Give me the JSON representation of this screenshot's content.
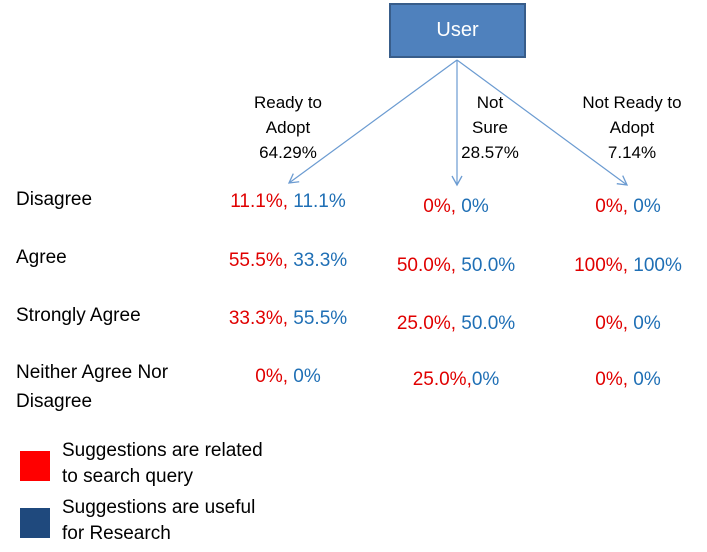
{
  "root": {
    "label": "User"
  },
  "groups": [
    {
      "lines": [
        "Ready to",
        "Adopt",
        "64.29%"
      ]
    },
    {
      "lines": [
        "Not",
        "Sure",
        "28.57%"
      ]
    },
    {
      "lines": [
        "Not Ready to",
        "Adopt",
        "7.14%"
      ]
    }
  ],
  "rows": [
    {
      "label_lines": [
        "Disagree"
      ],
      "cells": [
        {
          "a": "11.1%",
          "sep": ", ",
          "b": "11.1%"
        },
        {
          "a": "0%",
          "sep": ", ",
          "b": "0%"
        },
        {
          "a": "0%",
          "sep": ", ",
          "b": "0%"
        }
      ]
    },
    {
      "label_lines": [
        "Agree"
      ],
      "cells": [
        {
          "a": "55.5%",
          "sep": ", ",
          "b": "33.3%"
        },
        {
          "a": "50.0%",
          "sep": ", ",
          "b": "50.0%"
        },
        {
          "a": "100%",
          "sep": ", ",
          "b": "100%"
        }
      ]
    },
    {
      "label_lines": [
        "Strongly Agree"
      ],
      "cells": [
        {
          "a": "33.3%",
          "sep": ", ",
          "b": "55.5%"
        },
        {
          "a": "25.0%",
          "sep": ", ",
          "b": "50.0%"
        },
        {
          "a": "0%",
          "sep": ", ",
          "b": "0%"
        }
      ]
    },
    {
      "label_lines": [
        "Neither Agree Nor",
        "Disagree"
      ],
      "cells": [
        {
          "a": "0%",
          "sep": ", ",
          "b": "0%"
        },
        {
          "a": "25.0%",
          "sep": ",",
          "b": "0%"
        },
        {
          "a": "0%",
          "sep": ", ",
          "b": "0%"
        }
      ]
    }
  ],
  "legend": [
    {
      "color": "#ff0000",
      "lines": [
        "Suggestions are related",
        "to search query"
      ]
    },
    {
      "color": "#1f497d",
      "lines": [
        "Suggestions are useful",
        "for Research"
      ]
    }
  ],
  "colors": {
    "first_value": "#e00000",
    "second_value": "#1f6fb5",
    "box": "#4f81bd",
    "arrow": "#6b9bd1"
  }
}
